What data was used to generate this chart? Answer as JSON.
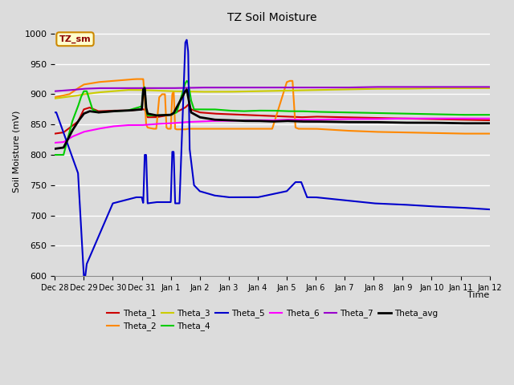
{
  "title": "TZ Soil Moisture",
  "xlabel": "Time",
  "ylabel": "Soil Moisture (mV)",
  "ylim": [
    600,
    1010
  ],
  "yticks": [
    600,
    650,
    700,
    750,
    800,
    850,
    900,
    950,
    1000
  ],
  "plot_bg_color": "#dcdcdc",
  "annotation_text": "TZ_sm",
  "annotation_color": "#8B0000",
  "annotation_bg": "#ffffcc",
  "annotation_border": "#cc8800",
  "line_colors": {
    "Theta_1": "#cc0000",
    "Theta_2": "#ff8800",
    "Theta_3": "#cccc00",
    "Theta_4": "#00cc00",
    "Theta_5": "#0000cc",
    "Theta_6": "#ff00ff",
    "Theta_7": "#9900cc",
    "Theta_avg": "#000000"
  },
  "line_widths": {
    "Theta_1": 1.5,
    "Theta_2": 1.5,
    "Theta_3": 1.5,
    "Theta_4": 1.5,
    "Theta_5": 1.5,
    "Theta_6": 1.5,
    "Theta_7": 1.5,
    "Theta_avg": 2.0
  },
  "xtick_labels": [
    "Dec 28",
    "Dec 29",
    "Dec 30",
    "Dec 31",
    "Jan 1",
    "Jan 2",
    "Jan 3",
    "Jan 4",
    "Jan 5",
    "Jan 6",
    "Jan 7",
    "Jan 8",
    "Jan 9",
    "Jan 10",
    "Jan 11",
    "Jan 12"
  ]
}
